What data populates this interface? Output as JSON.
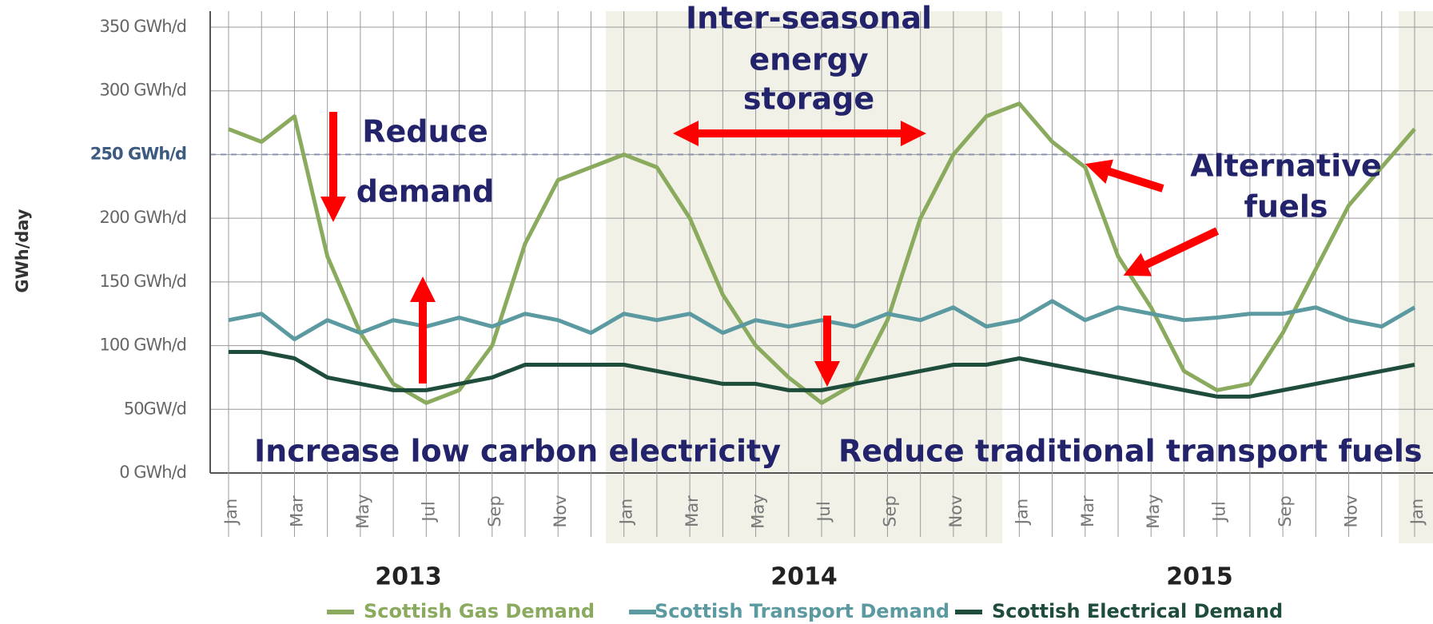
{
  "chart_data": {
    "type": "line",
    "y_axis_label": "GWh/day",
    "categories": [
      "Jan",
      null,
      "Mar",
      null,
      "May",
      null,
      "Jul",
      null,
      "Sep",
      null,
      "Nov",
      null,
      "Jan",
      null,
      "Mar",
      null,
      "May",
      null,
      "Jul",
      null,
      "Sep",
      null,
      "Nov",
      null,
      "Jan",
      null,
      "Mar",
      null,
      "May",
      null,
      "Jul",
      null,
      "Sep",
      null,
      "Nov",
      null,
      "Jan"
    ],
    "years": [
      "2013",
      "2014",
      "2015"
    ],
    "series": [
      {
        "name": "Scottish Gas Demand",
        "color": "#8aaa5e",
        "values": [
          270,
          260,
          280,
          170,
          110,
          70,
          55,
          65,
          100,
          180,
          230,
          240,
          250,
          240,
          200,
          140,
          100,
          75,
          55,
          70,
          120,
          200,
          250,
          280,
          290,
          260,
          240,
          170,
          130,
          80,
          65,
          70,
          110,
          160,
          210,
          240,
          270
        ]
      },
      {
        "name": "Scottish Transport Demand",
        "color": "#5b9aa0",
        "values": [
          120,
          125,
          105,
          120,
          110,
          120,
          115,
          122,
          115,
          125,
          120,
          110,
          125,
          120,
          125,
          110,
          120,
          115,
          120,
          115,
          125,
          120,
          130,
          115,
          120,
          135,
          120,
          130,
          125,
          120,
          122,
          125,
          125,
          130,
          120,
          115,
          130
        ]
      },
      {
        "name": "Scottish Electrical Demand",
        "color": "#1e4d3b",
        "values": [
          95,
          95,
          90,
          75,
          70,
          65,
          65,
          70,
          75,
          85,
          85,
          85,
          85,
          80,
          75,
          70,
          70,
          65,
          65,
          70,
          75,
          80,
          85,
          85,
          90,
          85,
          80,
          75,
          70,
          65,
          60,
          60,
          65,
          70,
          75,
          80,
          85
        ]
      }
    ],
    "ylim": [
      0,
      350
    ],
    "yticks": [
      {
        "value": 0,
        "label": "0 GWh/d"
      },
      {
        "value": 50,
        "label": "50GW/d"
      },
      {
        "value": 100,
        "label": "100 GWh/d"
      },
      {
        "value": 150,
        "label": "150 GWh/d"
      },
      {
        "value": 200,
        "label": "200 GWh/d"
      },
      {
        "value": 250,
        "label": "250 GWh/d"
      },
      {
        "value": 300,
        "label": "300 GWh/d"
      },
      {
        "value": 350,
        "label": "350 GWh/d"
      }
    ],
    "reference_line": 250,
    "grid": true,
    "annotations": [
      [
        "Inter-seasonal",
        "energy",
        "storage"
      ],
      [
        "Reduce",
        "demand"
      ],
      [
        "Alternative",
        "fuels"
      ],
      [
        "Increase low carbon electricity"
      ],
      [
        "Reduce traditional transport fuels"
      ]
    ]
  }
}
